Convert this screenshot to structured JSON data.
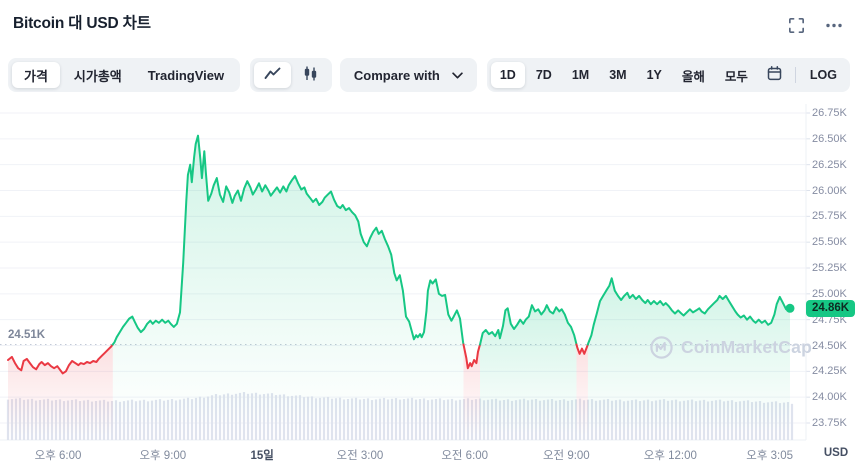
{
  "header": {
    "title": "Bitcoin 대 USD 차트"
  },
  "toolbar": {
    "chart_tabs": [
      {
        "label": "가격",
        "active": true
      },
      {
        "label": "시가총액",
        "active": false
      },
      {
        "label": "TradingView",
        "active": false
      }
    ],
    "chart_types": [
      {
        "name": "line-chart",
        "active": true
      },
      {
        "name": "candlestick-chart",
        "active": false
      }
    ],
    "compare_label": "Compare with",
    "ranges": [
      {
        "label": "1D",
        "active": true
      },
      {
        "label": "7D",
        "active": false
      },
      {
        "label": "1M",
        "active": false
      },
      {
        "label": "3M",
        "active": false
      },
      {
        "label": "1Y",
        "active": false
      },
      {
        "label": "올해",
        "active": false
      },
      {
        "label": "모두",
        "active": false
      }
    ],
    "log_label": "LOG"
  },
  "chart": {
    "current_price_label": "24.86K",
    "prev_close_label": "24.51K",
    "axis_unit": "USD",
    "watermark": "CoinMarketCap",
    "colors": {
      "up": "#16c784",
      "down": "#ea3943",
      "badge_bg": "#16c784",
      "grid": "#f0f2f7",
      "axis_border": "#edf0f5",
      "dashed": "#c3cad7",
      "volume": "#dfe3ee",
      "watermark": "#ccd3e0"
    }
  },
  "chart_data": {
    "type": "line",
    "title": "Bitcoin 대 USD 차트",
    "ylabel": "USD",
    "ylim": [
      23.75,
      26.75
    ],
    "y_ticks": [
      "26.75K",
      "26.50K",
      "26.25K",
      "26.00K",
      "25.75K",
      "25.50K",
      "25.25K",
      "25.00K",
      "24.75K",
      "24.50K",
      "24.25K",
      "24.00K",
      "23.75K"
    ],
    "x_ticks": [
      {
        "f": 0.064,
        "label": "오후 6:00",
        "bold": false
      },
      {
        "f": 0.198,
        "label": "오후 9:00",
        "bold": false
      },
      {
        "f": 0.325,
        "label": "15일",
        "bold": true
      },
      {
        "f": 0.45,
        "label": "오전 3:00",
        "bold": false
      },
      {
        "f": 0.584,
        "label": "오전 6:00",
        "bold": false
      },
      {
        "f": 0.714,
        "label": "오전 9:00",
        "bold": false
      },
      {
        "f": 0.847,
        "label": "오후 12:00",
        "bold": false
      },
      {
        "f": 0.974,
        "label": "오후 3:05",
        "bold": false
      }
    ],
    "prev_close": 24.51,
    "last_price": 24.86,
    "unit": "K USD",
    "x_unit": "fraction of visible 1D window",
    "points": [
      [
        0,
        24.36
      ],
      [
        0.005,
        24.39
      ],
      [
        0.009,
        24.33
      ],
      [
        0.013,
        24.28
      ],
      [
        0.017,
        24.26
      ],
      [
        0.02,
        24.35
      ],
      [
        0.024,
        24.37
      ],
      [
        0.028,
        24.33
      ],
      [
        0.032,
        24.29
      ],
      [
        0.036,
        24.27
      ],
      [
        0.04,
        24.32
      ],
      [
        0.043,
        24.34
      ],
      [
        0.047,
        24.31
      ],
      [
        0.051,
        24.33
      ],
      [
        0.055,
        24.3
      ],
      [
        0.059,
        24.28
      ],
      [
        0.063,
        24.3
      ],
      [
        0.067,
        24.26
      ],
      [
        0.07,
        24.23
      ],
      [
        0.074,
        24.25
      ],
      [
        0.078,
        24.31
      ],
      [
        0.082,
        24.35
      ],
      [
        0.086,
        24.33
      ],
      [
        0.09,
        24.31
      ],
      [
        0.093,
        24.33
      ],
      [
        0.097,
        24.32
      ],
      [
        0.101,
        24.34
      ],
      [
        0.105,
        24.33
      ],
      [
        0.109,
        24.35
      ],
      [
        0.113,
        24.34
      ],
      [
        0.116,
        24.37
      ],
      [
        0.12,
        24.4
      ],
      [
        0.124,
        24.43
      ],
      [
        0.128,
        24.46
      ],
      [
        0.132,
        24.49
      ],
      [
        0.136,
        24.53
      ],
      [
        0.139,
        24.58
      ],
      [
        0.143,
        24.63
      ],
      [
        0.147,
        24.68
      ],
      [
        0.151,
        24.72
      ],
      [
        0.155,
        24.76
      ],
      [
        0.159,
        24.78
      ],
      [
        0.162,
        24.73
      ],
      [
        0.166,
        24.67
      ],
      [
        0.17,
        24.63
      ],
      [
        0.174,
        24.66
      ],
      [
        0.178,
        24.71
      ],
      [
        0.182,
        24.74
      ],
      [
        0.185,
        24.71
      ],
      [
        0.189,
        24.74
      ],
      [
        0.193,
        24.72
      ],
      [
        0.197,
        24.75
      ],
      [
        0.201,
        24.72
      ],
      [
        0.205,
        24.74
      ],
      [
        0.208,
        24.71
      ],
      [
        0.212,
        24.68
      ],
      [
        0.216,
        24.71
      ],
      [
        0.22,
        24.82
      ],
      [
        0.224,
        25.3
      ],
      [
        0.228,
        25.9
      ],
      [
        0.23,
        26.15
      ],
      [
        0.233,
        26.25
      ],
      [
        0.235,
        26.08
      ],
      [
        0.238,
        26.32
      ],
      [
        0.24,
        26.45
      ],
      [
        0.243,
        26.53
      ],
      [
        0.246,
        26.3
      ],
      [
        0.248,
        26.12
      ],
      [
        0.251,
        26.38
      ],
      [
        0.253,
        26.18
      ],
      [
        0.256,
        25.9
      ],
      [
        0.26,
        25.97
      ],
      [
        0.263,
        26.05
      ],
      [
        0.267,
        26.12
      ],
      [
        0.271,
        25.96
      ],
      [
        0.275,
        25.89
      ],
      [
        0.279,
        26.04
      ],
      [
        0.283,
        25.98
      ],
      [
        0.287,
        25.88
      ],
      [
        0.29,
        25.95
      ],
      [
        0.294,
        26
      ],
      [
        0.298,
        25.9
      ],
      [
        0.302,
        26.02
      ],
      [
        0.306,
        26.09
      ],
      [
        0.31,
        26.03
      ],
      [
        0.313,
        25.96
      ],
      [
        0.317,
        26.01
      ],
      [
        0.321,
        26.07
      ],
      [
        0.325,
        25.99
      ],
      [
        0.329,
        26.05
      ],
      [
        0.333,
        26
      ],
      [
        0.336,
        25.95
      ],
      [
        0.34,
        25.99
      ],
      [
        0.344,
        26.03
      ],
      [
        0.348,
        25.98
      ],
      [
        0.352,
        26.04
      ],
      [
        0.356,
        25.99
      ],
      [
        0.359,
        26.05
      ],
      [
        0.363,
        26.1
      ],
      [
        0.367,
        26.14
      ],
      [
        0.371,
        26.07
      ],
      [
        0.375,
        26.01
      ],
      [
        0.379,
        26.03
      ],
      [
        0.382,
        25.97
      ],
      [
        0.386,
        25.93
      ],
      [
        0.39,
        25.89
      ],
      [
        0.394,
        25.92
      ],
      [
        0.398,
        25.86
      ],
      [
        0.402,
        25.89
      ],
      [
        0.405,
        25.93
      ],
      [
        0.409,
        25.96
      ],
      [
        0.413,
        25.99
      ],
      [
        0.417,
        25.91
      ],
      [
        0.421,
        25.85
      ],
      [
        0.425,
        25.83
      ],
      [
        0.428,
        25.86
      ],
      [
        0.432,
        25.81
      ],
      [
        0.436,
        25.83
      ],
      [
        0.44,
        25.79
      ],
      [
        0.444,
        25.76
      ],
      [
        0.448,
        25.7
      ],
      [
        0.451,
        25.58
      ],
      [
        0.455,
        25.5
      ],
      [
        0.459,
        25.46
      ],
      [
        0.463,
        25.54
      ],
      [
        0.467,
        25.6
      ],
      [
        0.471,
        25.64
      ],
      [
        0.474,
        25.58
      ],
      [
        0.478,
        25.61
      ],
      [
        0.482,
        25.53
      ],
      [
        0.486,
        25.46
      ],
      [
        0.49,
        25.38
      ],
      [
        0.494,
        25.2
      ],
      [
        0.497,
        25.13
      ],
      [
        0.501,
        25.18
      ],
      [
        0.505,
        25.03
      ],
      [
        0.509,
        24.78
      ],
      [
        0.513,
        24.73
      ],
      [
        0.517,
        24.62
      ],
      [
        0.519,
        24.56
      ],
      [
        0.522,
        24.6
      ],
      [
        0.524,
        24.58
      ],
      [
        0.527,
        24.61
      ],
      [
        0.529,
        24.58
      ],
      [
        0.532,
        24.63
      ],
      [
        0.535,
        24.83
      ],
      [
        0.537,
        25.03
      ],
      [
        0.54,
        25.13
      ],
      [
        0.543,
        25.1
      ],
      [
        0.547,
        25.14
      ],
      [
        0.551,
        25
      ],
      [
        0.555,
        24.98
      ],
      [
        0.559,
        24.99
      ],
      [
        0.563,
        24.8
      ],
      [
        0.567,
        24.74
      ],
      [
        0.57,
        24.78
      ],
      [
        0.574,
        24.84
      ],
      [
        0.578,
        24.76
      ],
      [
        0.582,
        24.53
      ],
      [
        0.586,
        24.38
      ],
      [
        0.588,
        24.28
      ],
      [
        0.591,
        24.33
      ],
      [
        0.593,
        24.3
      ],
      [
        0.596,
        24.36
      ],
      [
        0.599,
        24.33
      ],
      [
        0.601,
        24.44
      ],
      [
        0.604,
        24.52
      ],
      [
        0.607,
        24.62
      ],
      [
        0.611,
        24.65
      ],
      [
        0.615,
        24.61
      ],
      [
        0.619,
        24.63
      ],
      [
        0.623,
        24.59
      ],
      [
        0.627,
        24.65
      ],
      [
        0.629,
        24.57
      ],
      [
        0.633,
        24.69
      ],
      [
        0.636,
        24.84
      ],
      [
        0.639,
        24.86
      ],
      [
        0.643,
        24.71
      ],
      [
        0.647,
        24.66
      ],
      [
        0.651,
        24.7
      ],
      [
        0.655,
        24.75
      ],
      [
        0.659,
        24.71
      ],
      [
        0.662,
        24.75
      ],
      [
        0.666,
        24.78
      ],
      [
        0.67,
        24.89
      ],
      [
        0.674,
        24.83
      ],
      [
        0.678,
        24.85
      ],
      [
        0.682,
        24.8
      ],
      [
        0.686,
        24.84
      ],
      [
        0.689,
        24.89
      ],
      [
        0.693,
        24.83
      ],
      [
        0.697,
        24.81
      ],
      [
        0.701,
        24.87
      ],
      [
        0.705,
        24.83
      ],
      [
        0.708,
        24.85
      ],
      [
        0.712,
        24.8
      ],
      [
        0.716,
        24.72
      ],
      [
        0.72,
        24.68
      ],
      [
        0.724,
        24.6
      ],
      [
        0.728,
        24.48
      ],
      [
        0.731,
        24.42
      ],
      [
        0.734,
        24.47
      ],
      [
        0.737,
        24.42
      ],
      [
        0.739,
        24.46
      ],
      [
        0.742,
        24.52
      ],
      [
        0.746,
        24.6
      ],
      [
        0.749,
        24.7
      ],
      [
        0.753,
        24.81
      ],
      [
        0.757,
        24.93
      ],
      [
        0.761,
        24.98
      ],
      [
        0.765,
        25.03
      ],
      [
        0.769,
        25.08
      ],
      [
        0.772,
        25.15
      ],
      [
        0.776,
        25.03
      ],
      [
        0.78,
        24.98
      ],
      [
        0.784,
        24.94
      ],
      [
        0.788,
        24.98
      ],
      [
        0.792,
        25.01
      ],
      [
        0.795,
        24.96
      ],
      [
        0.799,
        24.99
      ],
      [
        0.803,
        24.95
      ],
      [
        0.807,
        24.98
      ],
      [
        0.811,
        24.94
      ],
      [
        0.815,
        24.91
      ],
      [
        0.818,
        24.94
      ],
      [
        0.822,
        24.9
      ],
      [
        0.826,
        24.93
      ],
      [
        0.83,
        24.9
      ],
      [
        0.834,
        24.93
      ],
      [
        0.838,
        24.89
      ],
      [
        0.841,
        24.91
      ],
      [
        0.845,
        24.88
      ],
      [
        0.849,
        24.84
      ],
      [
        0.853,
        24.81
      ],
      [
        0.857,
        24.84
      ],
      [
        0.861,
        24.81
      ],
      [
        0.864,
        24.79
      ],
      [
        0.868,
        24.82
      ],
      [
        0.872,
        24.85
      ],
      [
        0.876,
        24.82
      ],
      [
        0.88,
        24.84
      ],
      [
        0.884,
        24.86
      ],
      [
        0.887,
        24.83
      ],
      [
        0.891,
        24.81
      ],
      [
        0.895,
        24.85
      ],
      [
        0.899,
        24.88
      ],
      [
        0.903,
        24.91
      ],
      [
        0.907,
        24.94
      ],
      [
        0.91,
        24.98
      ],
      [
        0.914,
        24.95
      ],
      [
        0.918,
        24.98
      ],
      [
        0.922,
        24.93
      ],
      [
        0.926,
        24.88
      ],
      [
        0.93,
        24.83
      ],
      [
        0.933,
        24.8
      ],
      [
        0.937,
        24.77
      ],
      [
        0.941,
        24.79
      ],
      [
        0.945,
        24.75
      ],
      [
        0.949,
        24.78
      ],
      [
        0.953,
        24.74
      ],
      [
        0.956,
        24.72
      ],
      [
        0.96,
        24.75
      ],
      [
        0.964,
        24.72
      ],
      [
        0.968,
        24.74
      ],
      [
        0.972,
        24.7
      ],
      [
        0.976,
        24.72
      ],
      [
        0.98,
        24.8
      ],
      [
        0.983,
        24.9
      ],
      [
        0.987,
        24.97
      ],
      [
        0.991,
        24.91
      ],
      [
        0.995,
        24.85
      ],
      [
        1,
        24.86
      ]
    ],
    "volume_profile": [
      0.88,
      0.86,
      0.85,
      0.84,
      0.83,
      0.84,
      0.85,
      0.88,
      0.96,
      1.0,
      0.98,
      0.94,
      0.9,
      0.88,
      0.87,
      0.88,
      0.87,
      0.86,
      0.87,
      0.85,
      0.86,
      0.85,
      0.86,
      0.85,
      0.84,
      0.85,
      0.84,
      0.84,
      0.83,
      0.81,
      0.79
    ]
  }
}
